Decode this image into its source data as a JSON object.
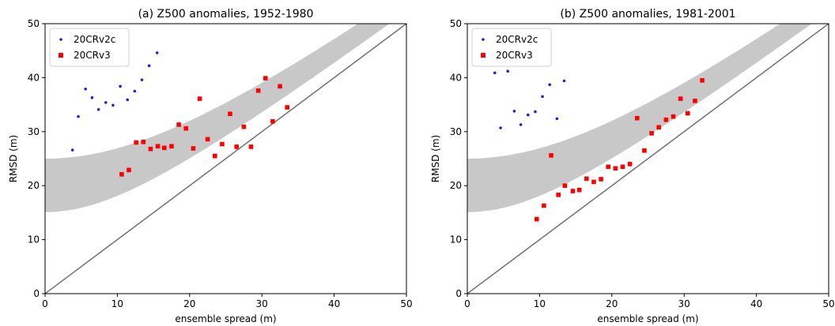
{
  "chart_data": [
    {
      "type": "scatter",
      "title": "(a) Z500 anomalies, 1952-1980",
      "xlabel": "ensemble spread (m)",
      "ylabel": "RMSD (m)",
      "xlim": [
        0,
        50
      ],
      "ylim": [
        0,
        50
      ],
      "xticks": [
        "0",
        "10",
        "20",
        "30",
        "40",
        "50"
      ],
      "yticks": [
        "0",
        "10",
        "20",
        "30",
        "40",
        "50"
      ],
      "grid": false,
      "legend_position": "upper-left",
      "one_to_one_line": true,
      "shaded_band": {
        "color": "#c8c8c8",
        "lower_at_zero": 15.1,
        "upper_at_zero": 25
      },
      "series": [
        {
          "name": "20CRv2c",
          "color": "#1f1fdf",
          "marker": "dot",
          "points": [
            [
              3.8,
              26.6
            ],
            [
              4.6,
              32.8
            ],
            [
              5.6,
              37.9
            ],
            [
              6.5,
              36.3
            ],
            [
              7.4,
              34.1
            ],
            [
              8.4,
              35.4
            ],
            [
              9.4,
              34.9
            ],
            [
              10.4,
              38.4
            ],
            [
              11.4,
              35.9
            ],
            [
              12.4,
              37.5
            ],
            [
              13.4,
              39.6
            ],
            [
              14.4,
              42.2
            ],
            [
              15.5,
              44.6
            ]
          ]
        },
        {
          "name": "20CRv3",
          "color": "#ff0000",
          "marker": "square",
          "points": [
            [
              10.6,
              22.1
            ],
            [
              11.6,
              22.9
            ],
            [
              12.6,
              28.0
            ],
            [
              13.6,
              28.1
            ],
            [
              14.6,
              26.8
            ],
            [
              15.6,
              27.3
            ],
            [
              16.5,
              27.0
            ],
            [
              17.5,
              27.3
            ],
            [
              18.5,
              31.3
            ],
            [
              19.5,
              30.6
            ],
            [
              20.5,
              26.9
            ],
            [
              21.4,
              36.1
            ],
            [
              22.5,
              28.6
            ],
            [
              23.5,
              25.5
            ],
            [
              24.5,
              27.7
            ],
            [
              25.6,
              33.3
            ],
            [
              26.5,
              27.2
            ],
            [
              27.5,
              30.9
            ],
            [
              28.5,
              27.2
            ],
            [
              29.5,
              37.6
            ],
            [
              30.5,
              39.9
            ],
            [
              31.5,
              31.9
            ],
            [
              32.5,
              38.4
            ],
            [
              33.5,
              34.5
            ]
          ]
        }
      ]
    },
    {
      "type": "scatter",
      "title": "(b) Z500 anomalies, 1981-2001",
      "xlabel": "ensemble spread (m)",
      "ylabel": "RMSD (m)",
      "xlim": [
        0,
        50
      ],
      "ylim": [
        0,
        50
      ],
      "xticks": [
        "0",
        "10",
        "20",
        "30",
        "40",
        "50"
      ],
      "yticks": [
        "0",
        "10",
        "20",
        "30",
        "40",
        "50"
      ],
      "grid": false,
      "legend_position": "upper-left",
      "one_to_one_line": true,
      "shaded_band": {
        "color": "#c8c8c8",
        "lower_at_zero": 15.1,
        "upper_at_zero": 25
      },
      "series": [
        {
          "name": "20CRv2c",
          "color": "#1f1fdf",
          "marker": "dot",
          "points": [
            [
              3.8,
              40.9
            ],
            [
              4.6,
              30.7
            ],
            [
              5.6,
              41.2
            ],
            [
              6.5,
              33.8
            ],
            [
              7.4,
              31.3
            ],
            [
              8.4,
              33.1
            ],
            [
              9.4,
              33.7
            ],
            [
              10.4,
              36.5
            ],
            [
              11.4,
              38.7
            ],
            [
              12.4,
              32.4
            ],
            [
              13.4,
              39.4
            ]
          ]
        },
        {
          "name": "20CRv3",
          "color": "#ff0000",
          "marker": "square",
          "points": [
            [
              9.6,
              13.8
            ],
            [
              10.6,
              16.3
            ],
            [
              11.6,
              25.6
            ],
            [
              12.6,
              18.3
            ],
            [
              13.5,
              20.0
            ],
            [
              14.6,
              19.0
            ],
            [
              15.5,
              19.2
            ],
            [
              16.5,
              21.3
            ],
            [
              17.5,
              20.7
            ],
            [
              18.5,
              21.2
            ],
            [
              19.5,
              23.5
            ],
            [
              20.5,
              23.2
            ],
            [
              21.5,
              23.5
            ],
            [
              22.5,
              24.0
            ],
            [
              23.5,
              32.5
            ],
            [
              24.5,
              26.5
            ],
            [
              25.5,
              29.7
            ],
            [
              26.5,
              30.8
            ],
            [
              27.5,
              32.2
            ],
            [
              28.5,
              32.8
            ],
            [
              29.5,
              36.1
            ],
            [
              30.5,
              33.4
            ],
            [
              31.5,
              35.7
            ],
            [
              32.5,
              39.5
            ]
          ]
        }
      ]
    }
  ]
}
